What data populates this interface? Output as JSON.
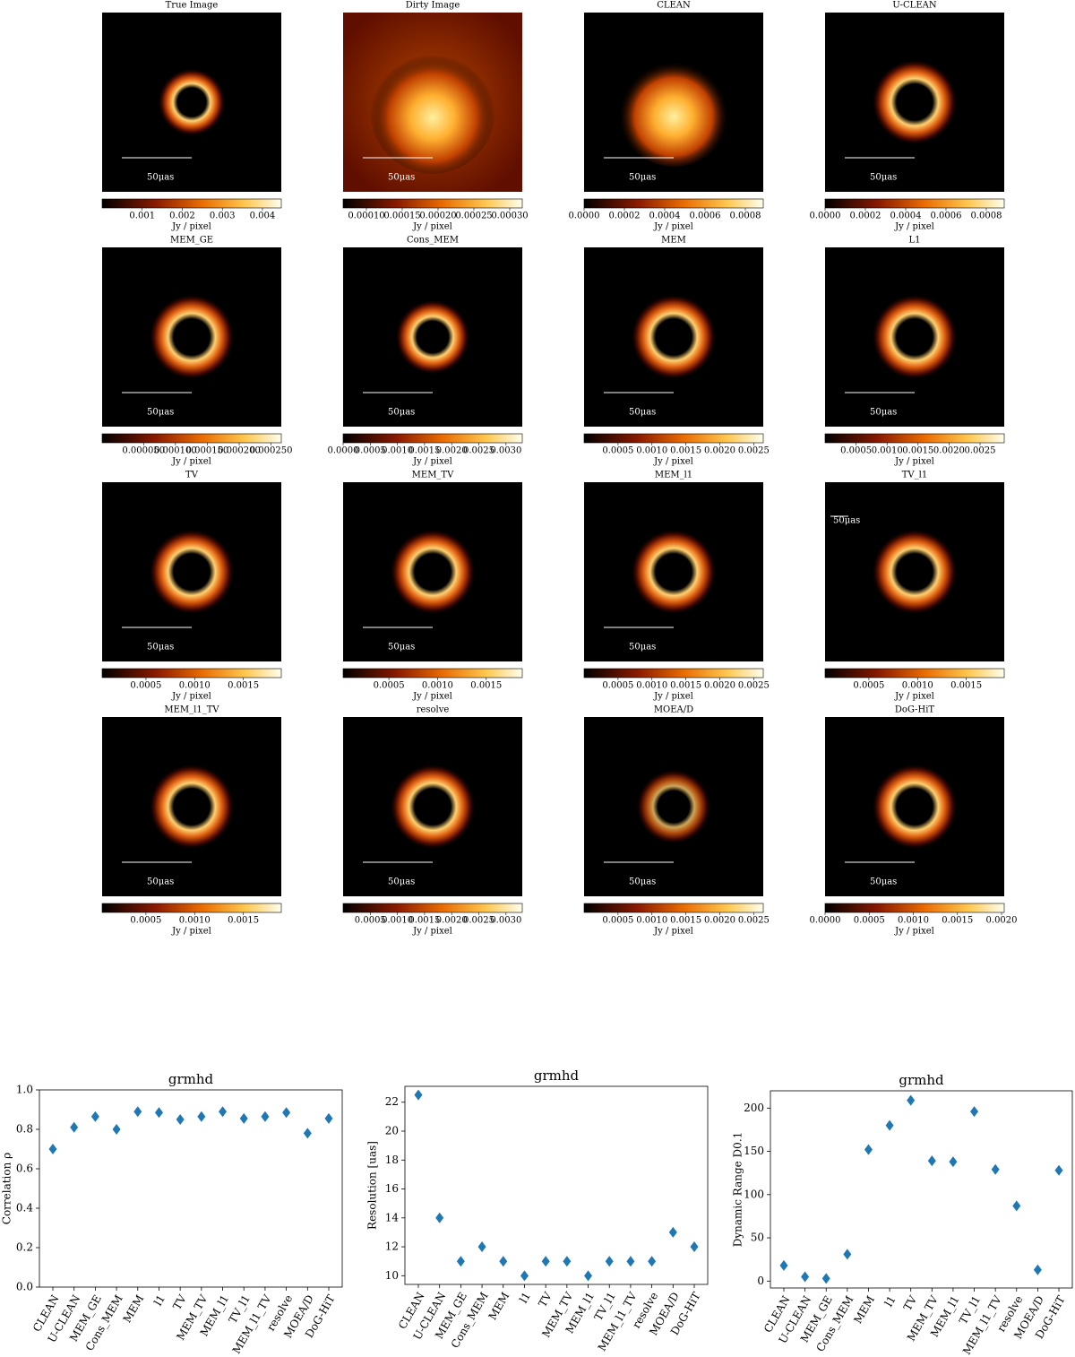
{
  "chart_data": [
    {
      "type": "image",
      "title": "True Image",
      "scalebar_label": "50μas",
      "colorbar_label": "Jy / pixel",
      "clim": [
        0,
        0.00447
      ],
      "cticks": [
        0.001,
        0.002,
        0.003,
        0.004
      ]
    },
    {
      "type": "image",
      "title": "Dirty Image",
      "scalebar_label": "50μas",
      "colorbar_label": "Jy / pixel",
      "clim": [
        6.75e-05,
        0.0003175
      ],
      "cticks": [
        {
          "value": 0.0001,
          "label": "0.00010"
        },
        {
          "value": 0.00015,
          "label": "0.00015"
        },
        {
          "value": 0.0002,
          "label": "0.00020"
        },
        {
          "value": 0.00025,
          "label": "0.00025"
        },
        {
          "value": 0.0003,
          "label": "0.00030"
        }
      ]
    },
    {
      "type": "image",
      "title": "CLEAN",
      "scalebar_label": "50μas",
      "colorbar_label": "Jy / pixel",
      "clim": [
        0,
        0.000889
      ],
      "cticks": [
        {
          "value": 0,
          "label": "0.0000"
        },
        0.0002,
        0.0004,
        0.0006,
        0.0008
      ]
    },
    {
      "type": "image",
      "title": "U-CLEAN",
      "scalebar_label": "50μas",
      "colorbar_label": "Jy / pixel",
      "clim": [
        0,
        0.000889
      ],
      "cticks": [
        {
          "value": 0,
          "label": "0.0000"
        },
        0.0002,
        0.0004,
        0.0006,
        0.0008
      ]
    },
    {
      "type": "image",
      "title": "MEM_GE",
      "scalebar_label": "50μas",
      "colorbar_label": "Jy / pixel",
      "clim": [
        -1.5e-05,
        0.000266
      ],
      "cticks": [
        {
          "value": 5e-05,
          "label": "0.000050"
        },
        {
          "value": 0.0001,
          "label": "0.000100"
        },
        {
          "value": 0.00015,
          "label": "0.000150"
        },
        {
          "value": 0.0002,
          "label": "0.000200"
        },
        {
          "value": 0.00025,
          "label": "0.000250"
        }
      ]
    },
    {
      "type": "image",
      "title": "Cons_MEM",
      "scalebar_label": "50μas",
      "colorbar_label": "Jy / pixel",
      "clim": [
        0,
        0.0033
      ],
      "cticks": [
        {
          "value": 0,
          "label": "0.0000"
        },
        0.0005,
        {
          "value": 0.001,
          "label": "0.0010"
        },
        0.0015,
        {
          "value": 0.002,
          "label": "0.0020"
        },
        0.0025,
        {
          "value": 0.003,
          "label": "0.0030"
        }
      ]
    },
    {
      "type": "image",
      "title": "MEM",
      "scalebar_label": "50μas",
      "colorbar_label": "Jy / pixel",
      "clim": [
        0,
        0.00264
      ],
      "cticks": [
        0.0005,
        {
          "value": 0.001,
          "label": "0.0010"
        },
        0.0015,
        {
          "value": 0.002,
          "label": "0.0020"
        },
        0.0025
      ]
    },
    {
      "type": "image",
      "title": "L1",
      "scalebar_label": "50μas",
      "colorbar_label": "Jy / pixel",
      "clim": [
        0,
        0.00289
      ],
      "cticks": [
        0.0005,
        {
          "value": 0.001,
          "label": "0.0010"
        },
        0.0015,
        {
          "value": 0.002,
          "label": "0.0020"
        },
        0.0025
      ]
    },
    {
      "type": "image",
      "title": "TV",
      "scalebar_label": "50μas",
      "colorbar_label": "Jy / pixel",
      "clim": [
        5e-05,
        0.00189
      ],
      "cticks": [
        0.0005,
        {
          "value": 0.001,
          "label": "0.0010"
        },
        0.0015
      ]
    },
    {
      "type": "image",
      "title": "MEM_TV",
      "scalebar_label": "50μas",
      "colorbar_label": "Jy / pixel",
      "clim": [
        3e-05,
        0.00187
      ],
      "cticks": [
        0.0005,
        {
          "value": 0.001,
          "label": "0.0010"
        },
        0.0015
      ]
    },
    {
      "type": "image",
      "title": "MEM_l1",
      "scalebar_label": "50μas",
      "colorbar_label": "Jy / pixel",
      "clim": [
        0,
        0.00264
      ],
      "cticks": [
        0.0005,
        {
          "value": 0.001,
          "label": "0.0010"
        },
        0.0015,
        {
          "value": 0.002,
          "label": "0.0020"
        },
        0.0025
      ]
    },
    {
      "type": "image",
      "title": "TV_l1",
      "scalebar_label": "50μas",
      "colorbar_label": "Jy / pixel",
      "clim": [
        5e-05,
        0.00189
      ],
      "cticks": [
        0.0005,
        {
          "value": 0.001,
          "label": "0.0010"
        },
        0.0015
      ]
    },
    {
      "type": "image",
      "title": "MEM_l1_TV",
      "scalebar_label": "50μas",
      "colorbar_label": "Jy / pixel",
      "clim": [
        5e-05,
        0.00189
      ],
      "cticks": [
        0.0005,
        {
          "value": 0.001,
          "label": "0.0010"
        },
        0.0015
      ]
    },
    {
      "type": "image",
      "title": "resolve",
      "scalebar_label": "50μas",
      "colorbar_label": "Jy / pixel",
      "clim": [
        0,
        0.0033
      ],
      "cticks": [
        0.0005,
        {
          "value": 0.001,
          "label": "0.0010"
        },
        0.0015,
        {
          "value": 0.002,
          "label": "0.0020"
        },
        0.0025,
        {
          "value": 0.003,
          "label": "0.0030"
        }
      ]
    },
    {
      "type": "image",
      "title": "MOEA/D",
      "scalebar_label": "50μas",
      "colorbar_label": "Jy / pixel",
      "clim": [
        0,
        0.00264
      ],
      "cticks": [
        0.0005,
        {
          "value": 0.001,
          "label": "0.0010"
        },
        0.0015,
        {
          "value": 0.002,
          "label": "0.0020"
        },
        0.0025
      ]
    },
    {
      "type": "image",
      "title": "DoG-HiT",
      "scalebar_label": "50μas",
      "colorbar_label": "Jy / pixel",
      "clim": [
        0,
        0.00203
      ],
      "cticks": [
        {
          "value": 0,
          "label": "0.0000"
        },
        0.0005,
        {
          "value": 0.001,
          "label": "0.0010"
        },
        0.0015,
        {
          "value": 0.002,
          "label": "0.0020"
        }
      ]
    },
    {
      "type": "scatter",
      "title": "grmhd",
      "y_label": "Correlation ρ",
      "color": "#1f77b4",
      "categories": [
        "CLEAN",
        "U-CLEAN",
        "MEM_GE",
        "Cons_MEM",
        "MEM",
        "l1",
        "TV",
        "MEM_TV",
        "MEM_l1",
        "TV_l1",
        "MEM_l1_TV",
        "resolve",
        "MOEA/D",
        "DoG-HiT"
      ],
      "values": [
        0.7,
        0.81,
        0.865,
        0.8,
        0.89,
        0.885,
        0.85,
        0.865,
        0.89,
        0.855,
        0.865,
        0.885,
        0.78,
        0.855
      ],
      "ylim": [
        0,
        1
      ],
      "yticks": [
        {
          "value": 0,
          "label": "0.0"
        },
        0.2,
        0.4,
        0.6,
        0.8,
        {
          "value": 1,
          "label": "1.0"
        }
      ]
    },
    {
      "type": "scatter",
      "title": "grmhd",
      "y_label": "Resolution [uas]",
      "color": "#1f77b4",
      "categories": [
        "CLEAN",
        "U-CLEAN",
        "MEM_GE",
        "Cons_MEM",
        "MEM",
        "l1",
        "TV",
        "MEM_TV",
        "MEM_l1",
        "TV_l1",
        "MEM_l1_TV",
        "resolve",
        "MOEA/D",
        "DoG-HiT"
      ],
      "values": [
        22.5,
        14,
        11,
        12,
        11,
        10,
        11,
        11,
        10,
        11,
        11,
        11,
        13,
        12
      ],
      "ylim": [
        9.4,
        23.1
      ],
      "yticks": [
        10,
        12,
        14,
        16,
        18,
        20,
        22
      ]
    },
    {
      "type": "scatter",
      "title": "grmhd",
      "y_label": "Dynamic Range D0.1",
      "color": "#1f77b4",
      "categories": [
        "CLEAN",
        "U-CLEAN",
        "MEM_GE",
        "Cons_MEM",
        "MEM",
        "l1",
        "TV",
        "MEM_TV",
        "MEM_l1",
        "TV_l1",
        "MEM_l1_TV",
        "resolve",
        "MOEA/D",
        "DoG-HiT"
      ],
      "values": [
        18,
        5,
        3,
        31,
        152,
        180,
        209,
        139,
        138,
        196,
        129,
        87,
        13,
        128
      ],
      "ylim": [
        -8,
        220
      ],
      "yticks": [
        0,
        50,
        100,
        150,
        200
      ]
    }
  ]
}
